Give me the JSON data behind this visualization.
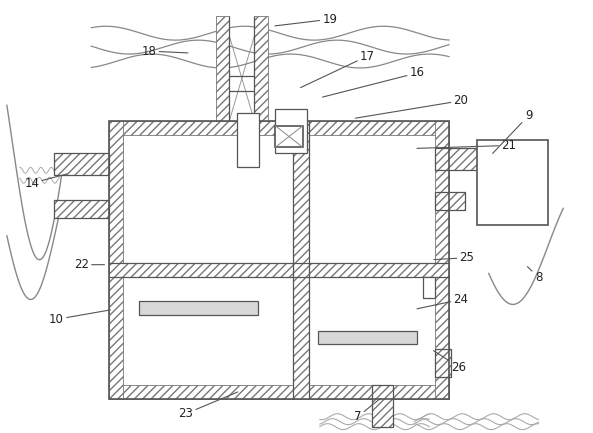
{
  "bg": "#ffffff",
  "lc": "#555555",
  "lc2": "#444444",
  "fig_w": 5.93,
  "fig_h": 4.33,
  "dpi": 100,
  "annotations": [
    [
      "19",
      330,
      18,
      272,
      25
    ],
    [
      "18",
      148,
      50,
      190,
      52
    ],
    [
      "17",
      368,
      55,
      298,
      88
    ],
    [
      "16",
      418,
      72,
      320,
      97
    ],
    [
      "20",
      462,
      100,
      353,
      118
    ],
    [
      "21",
      510,
      145,
      415,
      148
    ],
    [
      "14",
      30,
      183,
      68,
      173
    ],
    [
      "9",
      530,
      115,
      492,
      155
    ],
    [
      "8",
      540,
      278,
      527,
      265
    ],
    [
      "10",
      55,
      320,
      112,
      310
    ],
    [
      "22",
      80,
      265,
      106,
      265
    ],
    [
      "23",
      185,
      415,
      240,
      392
    ],
    [
      "24",
      462,
      300,
      415,
      310
    ],
    [
      "25",
      468,
      258,
      432,
      260
    ],
    [
      "26",
      460,
      368,
      432,
      350
    ],
    [
      "7",
      358,
      418,
      383,
      398
    ]
  ]
}
